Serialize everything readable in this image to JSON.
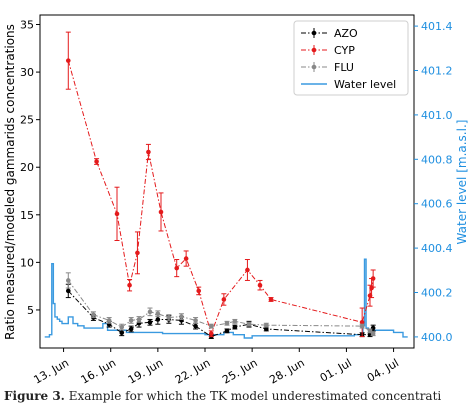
{
  "chart_data": {
    "type": "line",
    "xlim": [
      11.5,
      35.3
    ],
    "ylim": [
      1,
      36
    ],
    "y2lim": [
      399.95,
      401.45
    ],
    "x_ticks": [
      13,
      16,
      19,
      22,
      25,
      28,
      31,
      34
    ],
    "x_tick_labels": [
      "13. Jun",
      "16. Jun",
      "19. Jun",
      "22. Jun",
      "25. Jun",
      "28. Jun",
      "01. Jul",
      "04. Jul"
    ],
    "y_ticks": [
      5,
      10,
      15,
      20,
      25,
      30,
      35
    ],
    "y_tick_labels": [
      "5",
      "10",
      "15",
      "20",
      "25",
      "30",
      "35"
    ],
    "y2_ticks": [
      400.0,
      400.2,
      400.4,
      400.6,
      400.8,
      401.0,
      401.2,
      401.4
    ],
    "y2_tick_labels": [
      "400.0",
      "400.2",
      "400.4",
      "400.6",
      "400.8",
      "401.0",
      "401.2",
      "401.4"
    ],
    "ylabel": "Ratio measured/modeled gammarids concentrations",
    "y2label": "Water level [m.a.s.l.]",
    "legend_position": "top-right",
    "series": [
      {
        "name": "AZO",
        "color": "#000000",
        "style": "dash-dot",
        "x": [
          13.3,
          14.9,
          15.9,
          16.7,
          17.3,
          17.8,
          18.5,
          19.0,
          19.7,
          20.5,
          21.4,
          22.4,
          23.4,
          23.9,
          24.8,
          25.9,
          32.0,
          32.5,
          32.7
        ],
        "y": [
          7.0,
          4.2,
          3.5,
          2.6,
          3.0,
          3.6,
          3.7,
          4.0,
          4.0,
          3.9,
          3.3,
          2.2,
          2.8,
          3.2,
          3.5,
          3.0,
          2.4,
          2.4,
          3.1
        ],
        "err": [
          0.7,
          0.3,
          0.3,
          0.3,
          0.3,
          0.4,
          0.3,
          0.5,
          0.4,
          0.4,
          0.3,
          0.2,
          0.2,
          0.2,
          0.3,
          0.2,
          0.2,
          0.2,
          0.3
        ]
      },
      {
        "name": "CYP",
        "color": "#e41a1c",
        "style": "dash-dot",
        "x": [
          13.3,
          15.1,
          16.4,
          17.2,
          17.7,
          18.4,
          19.2,
          20.2,
          20.8,
          21.6,
          22.4,
          23.2,
          24.7,
          25.5,
          26.2,
          32.0,
          32.5,
          32.6,
          32.7
        ],
        "y": [
          31.2,
          20.6,
          15.1,
          7.6,
          11.0,
          21.6,
          15.3,
          9.4,
          10.4,
          7.0,
          2.5,
          6.1,
          9.2,
          7.6,
          6.1,
          3.7,
          6.5,
          7.3,
          8.3
        ],
        "err": [
          3.0,
          0.3,
          2.8,
          0.6,
          2.2,
          0.8,
          2.0,
          0.9,
          0.8,
          0.4,
          0.3,
          0.6,
          1.1,
          0.5,
          0.2,
          1.5,
          1.1,
          1.0,
          0.9
        ]
      },
      {
        "name": "FLU",
        "color": "#888888",
        "style": "dash-dot",
        "x": [
          13.3,
          14.9,
          15.9,
          16.7,
          17.3,
          17.8,
          18.5,
          19.0,
          19.7,
          20.5,
          21.4,
          22.4,
          23.4,
          23.9,
          24.8,
          25.9,
          32.0,
          32.5,
          32.7
        ],
        "y": [
          8.1,
          4.5,
          3.9,
          3.2,
          3.9,
          4.0,
          4.8,
          4.6,
          4.2,
          4.3,
          3.9,
          3.3,
          3.6,
          3.8,
          3.5,
          3.4,
          3.3,
          2.8,
          2.5
        ],
        "err": [
          0.8,
          0.3,
          0.3,
          0.3,
          0.3,
          0.3,
          0.4,
          0.3,
          0.3,
          0.3,
          0.3,
          0.2,
          0.2,
          0.2,
          0.2,
          0.2,
          0.2,
          0.2,
          0.2
        ]
      },
      {
        "name": "Water level",
        "color": "#3a9ae0",
        "axis": "right",
        "style": "step",
        "x": [
          11.8,
          12.1,
          12.25,
          12.35,
          12.45,
          12.6,
          12.75,
          12.9,
          13.1,
          13.3,
          13.6,
          13.9,
          14.3,
          14.7,
          15.0,
          15.5,
          15.8,
          16.0,
          16.6,
          17.0,
          17.6,
          18.0,
          18.5,
          19.0,
          19.3,
          19.7,
          20.3,
          21.5,
          22.0,
          22.5,
          23.0,
          23.2,
          23.8,
          24.5,
          25.0,
          26.0,
          27.0,
          28.0,
          29.0,
          30.0,
          31.0,
          31.5,
          31.8,
          31.95,
          32.05,
          32.15,
          32.25,
          32.4,
          32.6,
          33.2,
          34.0,
          34.4,
          34.6,
          34.9
        ],
        "y": [
          400.0,
          400.01,
          400.33,
          400.15,
          400.09,
          400.08,
          400.07,
          400.06,
          400.06,
          400.09,
          400.06,
          400.05,
          400.04,
          400.04,
          400.04,
          400.06,
          400.03,
          400.03,
          400.03,
          400.02,
          400.02,
          400.02,
          400.02,
          400.02,
          400.015,
          400.015,
          400.015,
          400.015,
          400.01,
          400.01,
          400.01,
          400.02,
          400.01,
          399.995,
          400.005,
          400.005,
          400.005,
          400.005,
          400.005,
          400.005,
          400.005,
          400.01,
          400.01,
          400.01,
          400.05,
          400.35,
          400.04,
          400.03,
          400.03,
          400.03,
          400.02,
          400.02,
          400.0,
          400.0
        ]
      }
    ]
  },
  "caption": {
    "label": "Figure 3.",
    "text": "Example for which the TK model underestimated concentrati"
  }
}
